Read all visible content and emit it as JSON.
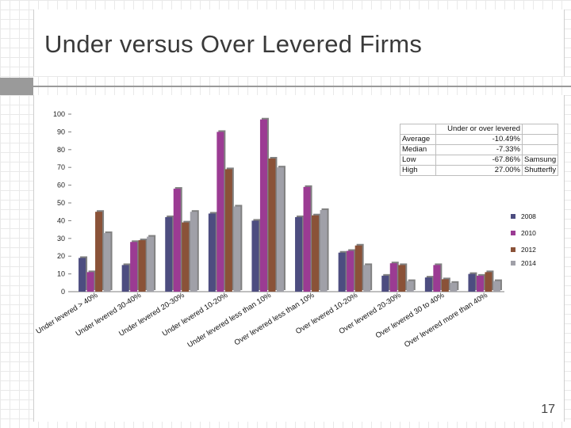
{
  "slide": {
    "title": "Under versus Over Levered Firms",
    "page_number": "17"
  },
  "table": {
    "header": "Under or over levered",
    "rows": [
      {
        "label": "Average",
        "value": "-10.49%",
        "note": ""
      },
      {
        "label": "Median",
        "value": "-7.33%",
        "note": ""
      },
      {
        "label": "Low",
        "value": "-67.86%",
        "note": "Samsung"
      },
      {
        "label": "High",
        "value": "27.00%",
        "note": "Shutterfly"
      }
    ]
  },
  "chart_data": {
    "type": "bar",
    "title": "",
    "xlabel": "",
    "ylabel": "",
    "ylim": [
      0,
      100
    ],
    "yticks": [
      0,
      10,
      20,
      30,
      40,
      50,
      60,
      70,
      80,
      90,
      100
    ],
    "grid": false,
    "legend_position": "right",
    "categories": [
      "Under levered > 40%",
      "Under levered 30-40%",
      "Under levered 20-30%",
      "Under levered 10-20%",
      "Under levered less than 10%",
      "Over levered less than 10%",
      "Over levered 10-20%",
      "Over levered 20-30%",
      "Over levered 30 to 40%",
      "Over levered more than 40%"
    ],
    "series": [
      {
        "name": "2008",
        "color": "#4d4d80",
        "values": [
          19,
          15,
          42,
          44,
          40,
          42,
          22,
          9,
          8,
          10
        ]
      },
      {
        "name": "2010",
        "color": "#9b3b93",
        "values": [
          11,
          28,
          58,
          90,
          97,
          59,
          23,
          16,
          15,
          9
        ]
      },
      {
        "name": "2012",
        "color": "#8a5238",
        "values": [
          45,
          29,
          39,
          69,
          75,
          43,
          26,
          15,
          7,
          11
        ]
      },
      {
        "name": "2014",
        "color": "#a0a0a8",
        "values": [
          33,
          31,
          45,
          48,
          70,
          46,
          15,
          6,
          5,
          6
        ]
      }
    ]
  }
}
